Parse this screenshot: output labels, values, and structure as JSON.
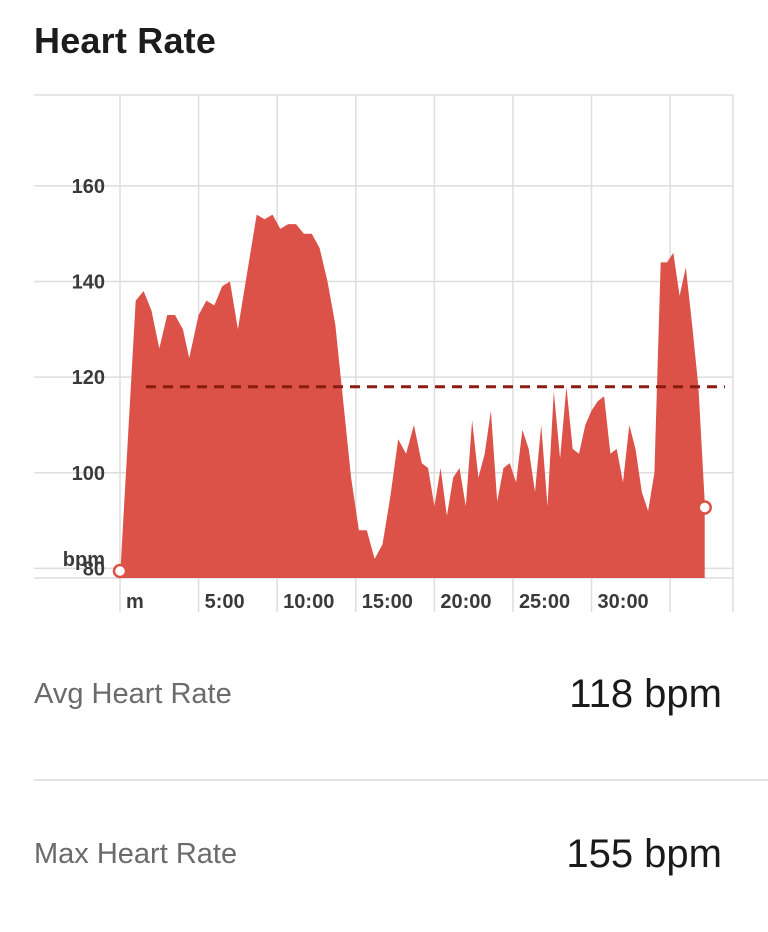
{
  "header": {
    "title": "Heart Rate"
  },
  "chart_data": {
    "type": "area",
    "title": "Heart Rate",
    "ylabel": "bpm",
    "xlabel": "",
    "ylim": [
      78,
      179
    ],
    "xlim": [
      0,
      39
    ],
    "grid": true,
    "yticks": [
      160,
      140,
      120,
      100,
      80
    ],
    "ytick_labels": [
      "160",
      "140",
      "120",
      "100",
      "80"
    ],
    "xticks": [
      0,
      5,
      10,
      15,
      20,
      25,
      30
    ],
    "xtick_labels": [
      "m",
      "5:00",
      "10:00",
      "15:00",
      "20:00",
      "25:00",
      "30:00"
    ],
    "average": 118,
    "series": [
      {
        "color": "#dc5248",
        "points": [
          [
            0,
            78
          ],
          [
            1.0,
            136
          ],
          [
            1.5,
            138
          ],
          [
            2.0,
            134
          ],
          [
            2.5,
            126
          ],
          [
            3.0,
            133
          ],
          [
            3.5,
            133
          ],
          [
            4.0,
            130
          ],
          [
            4.4,
            124
          ],
          [
            5.0,
            133
          ],
          [
            5.5,
            136
          ],
          [
            6.0,
            135
          ],
          [
            6.5,
            139
          ],
          [
            7.0,
            140
          ],
          [
            7.5,
            130
          ],
          [
            8.0,
            140
          ],
          [
            8.7,
            154
          ],
          [
            9.2,
            153
          ],
          [
            9.7,
            154
          ],
          [
            10.2,
            151
          ],
          [
            10.7,
            152
          ],
          [
            11.2,
            152
          ],
          [
            11.7,
            150
          ],
          [
            12.2,
            150
          ],
          [
            12.7,
            147
          ],
          [
            13.2,
            140
          ],
          [
            13.7,
            131
          ],
          [
            14.2,
            115
          ],
          [
            14.7,
            99
          ],
          [
            15.2,
            88
          ],
          [
            15.7,
            88
          ],
          [
            16.2,
            82
          ],
          [
            16.7,
            85
          ],
          [
            17.2,
            95
          ],
          [
            17.7,
            107
          ],
          [
            18.2,
            104
          ],
          [
            18.7,
            110
          ],
          [
            19.2,
            102
          ],
          [
            19.6,
            101
          ],
          [
            20.0,
            93
          ],
          [
            20.4,
            101
          ],
          [
            20.8,
            91
          ],
          [
            21.2,
            99
          ],
          [
            21.6,
            101
          ],
          [
            22.0,
            93
          ],
          [
            22.4,
            111
          ],
          [
            22.8,
            99
          ],
          [
            23.2,
            104
          ],
          [
            23.6,
            113
          ],
          [
            24.0,
            94
          ],
          [
            24.4,
            101
          ],
          [
            24.8,
            102
          ],
          [
            25.2,
            98
          ],
          [
            25.6,
            109
          ],
          [
            26.0,
            105
          ],
          [
            26.4,
            96
          ],
          [
            26.8,
            110
          ],
          [
            27.2,
            93
          ],
          [
            27.6,
            117
          ],
          [
            28.0,
            103
          ],
          [
            28.4,
            118
          ],
          [
            28.8,
            105
          ],
          [
            29.2,
            104
          ],
          [
            29.6,
            110
          ],
          [
            30.0,
            113
          ],
          [
            30.4,
            115
          ],
          [
            30.8,
            116
          ],
          [
            31.2,
            104
          ],
          [
            31.6,
            105
          ],
          [
            32.0,
            98
          ],
          [
            32.4,
            110
          ],
          [
            32.8,
            105
          ],
          [
            33.2,
            96
          ],
          [
            33.6,
            92
          ],
          [
            34.0,
            100
          ],
          [
            34.4,
            144
          ],
          [
            34.8,
            144
          ],
          [
            35.2,
            146
          ],
          [
            35.6,
            137
          ],
          [
            36.0,
            143
          ],
          [
            36.4,
            131
          ],
          [
            36.8,
            118
          ],
          [
            37.2,
            94
          ]
        ]
      }
    ]
  },
  "stats": [
    {
      "label": "Avg Heart Rate",
      "value": "118 bpm"
    },
    {
      "label": "Max Heart Rate",
      "value": "155 bpm"
    }
  ]
}
